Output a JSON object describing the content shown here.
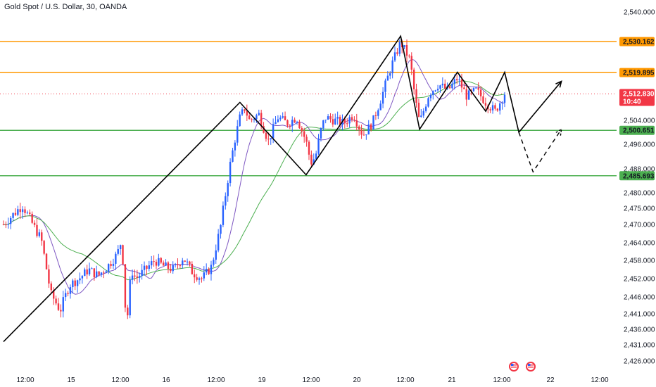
{
  "header": {
    "symbol_title": "Gold Spot / U.S. Dollar, 30, OANDA"
  },
  "chart_data": {
    "type": "candlestick",
    "title": "Gold Spot / U.S. Dollar, 30, OANDA",
    "y_axis": {
      "side": "right",
      "ticks": [
        "2,540.000",
        "2,512.000",
        "2,504.000",
        "2,496.000",
        "2,488.000",
        "2,480.000",
        "2,475.000",
        "2,470.000",
        "2,464.000",
        "2,458.000",
        "2,452.000",
        "2,446.000",
        "2,441.000",
        "2,436.000",
        "2,431.000",
        "2,426.000"
      ]
    },
    "x_axis": {
      "ticks": [
        "12:00",
        "15",
        "12:00",
        "16",
        "12:00",
        "19",
        "12:00",
        "20",
        "12:00",
        "21",
        "12:00",
        "22",
        "12:00"
      ]
    },
    "horizontal_levels": [
      {
        "value": 2530.162,
        "label": "2,530.162",
        "color": "#ff9800"
      },
      {
        "value": 2519.895,
        "label": "2,519.895",
        "color": "#ff9800"
      },
      {
        "value": 2500.651,
        "label": "2,500.651",
        "color": "#4caf50"
      },
      {
        "value": 2485.693,
        "label": "2,485.693",
        "color": "#4caf50"
      }
    ],
    "last_price": {
      "value": 2512.83,
      "label": "2,512.830",
      "countdown": "10:40",
      "color": "#f23645"
    },
    "colors": {
      "up": "#2962ff",
      "down": "#f23645",
      "ma_fast": "#7e57c2",
      "ma_slow": "#4caf50",
      "drawing": "#000000"
    },
    "candle_path": [
      [
        0,
        2470
      ],
      [
        4,
        2476
      ],
      [
        8,
        2465
      ],
      [
        10,
        2447
      ],
      [
        12,
        2442
      ],
      [
        14,
        2450
      ],
      [
        16,
        2452
      ],
      [
        18,
        2455
      ],
      [
        20,
        2453
      ],
      [
        22,
        2456
      ],
      [
        24,
        2460
      ],
      [
        25,
        2465
      ],
      [
        26,
        2436
      ],
      [
        27,
        2455
      ],
      [
        28,
        2452
      ],
      [
        30,
        2455
      ],
      [
        32,
        2458
      ],
      [
        34,
        2456
      ],
      [
        36,
        2455
      ],
      [
        38,
        2459
      ],
      [
        40,
        2454
      ],
      [
        42,
        2452
      ],
      [
        44,
        2456
      ],
      [
        46,
        2470
      ],
      [
        48,
        2490
      ],
      [
        49,
        2498
      ],
      [
        50,
        2505
      ],
      [
        51,
        2508
      ],
      [
        52,
        2504
      ],
      [
        54,
        2506
      ],
      [
        56,
        2497
      ],
      [
        58,
        2505
      ],
      [
        60,
        2503
      ],
      [
        62,
        2505
      ],
      [
        64,
        2497
      ],
      [
        65,
        2490
      ],
      [
        66,
        2492
      ],
      [
        67,
        2500
      ],
      [
        68,
        2505
      ],
      [
        70,
        2504
      ],
      [
        72,
        2503
      ],
      [
        74,
        2506
      ],
      [
        76,
        2499
      ],
      [
        78,
        2503
      ],
      [
        80,
        2512
      ],
      [
        82,
        2522
      ],
      [
        84,
        2530
      ],
      [
        86,
        2524
      ],
      [
        87,
        2512
      ],
      [
        88,
        2503
      ],
      [
        90,
        2513
      ],
      [
        92,
        2516
      ],
      [
        94,
        2514
      ],
      [
        96,
        2518
      ],
      [
        98,
        2512
      ],
      [
        100,
        2514
      ],
      [
        102,
        2510
      ],
      [
        104,
        2507
      ],
      [
        106,
        2513
      ]
    ],
    "projection_solid": [
      [
        0,
        2432
      ],
      [
        50,
        2510
      ],
      [
        64,
        2486
      ],
      [
        84,
        2532
      ],
      [
        88,
        2501
      ],
      [
        96,
        2520
      ],
      [
        102,
        2507
      ],
      [
        106,
        2520
      ],
      [
        109,
        2500
      ],
      [
        118,
        2517
      ]
    ],
    "projection_dashed": [
      [
        109,
        2500
      ],
      [
        112,
        2487
      ],
      [
        118,
        2501
      ]
    ]
  }
}
